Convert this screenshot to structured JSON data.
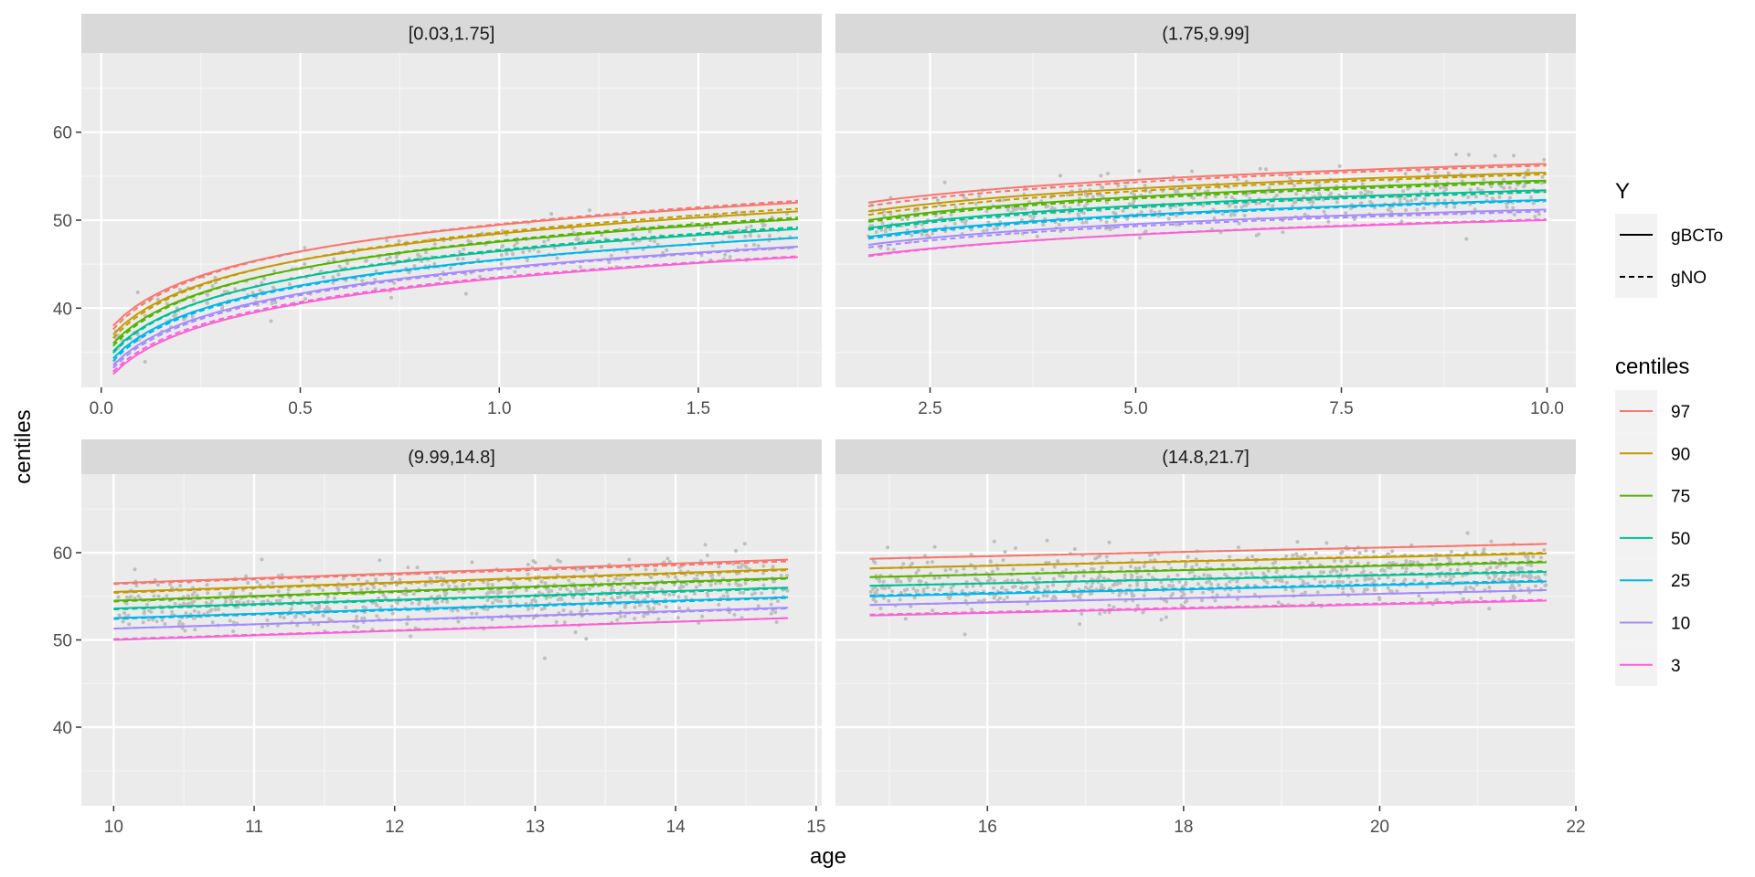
{
  "chart_data": {
    "type": "line",
    "title": "",
    "xlabel": "age",
    "ylabel": "centiles",
    "y_ticks": [
      40,
      50,
      60
    ],
    "ylim": [
      31,
      69
    ],
    "facets": [
      {
        "label": "[0.03,1.75]",
        "xlim": [
          -0.05,
          1.81
        ],
        "x_ticks": [
          0.0,
          0.5,
          1.0,
          1.5
        ],
        "x_tick_labels": [
          "0.0",
          "0.5",
          "1.0",
          "1.5"
        ],
        "x_range": [
          0.03,
          1.75
        ]
      },
      {
        "label": "(1.75,9.99]",
        "xlim": [
          1.35,
          10.35
        ],
        "x_ticks": [
          2.5,
          5.0,
          7.5,
          10.0
        ],
        "x_tick_labels": [
          "2.5",
          "5.0",
          "7.5",
          "10.0"
        ],
        "x_range": [
          1.75,
          9.99
        ]
      },
      {
        "label": "(9.99,14.8]",
        "xlim": [
          9.77,
          15.04
        ],
        "x_ticks": [
          10,
          11,
          12,
          13,
          14,
          15
        ],
        "x_tick_labels": [
          "10",
          "11",
          "12",
          "13",
          "14",
          "15"
        ],
        "x_range": [
          10.0,
          14.8
        ]
      },
      {
        "label": "(14.8,21.7]",
        "xlim": [
          14.45,
          22.0
        ],
        "x_ticks": [
          16,
          18,
          20,
          22
        ],
        "x_tick_labels": [
          "16",
          "18",
          "20",
          "22"
        ],
        "x_range": [
          14.8,
          21.7
        ]
      }
    ],
    "centiles": [
      {
        "name": "97",
        "color": "#F8766D",
        "gBCTo": [
          [
            38.0,
            52.0
          ],
          [
            52.0,
            56.4
          ],
          [
            56.5,
            59.2
          ],
          [
            59.3,
            61.0
          ]
        ],
        "gNO": [
          [
            37.6,
            52.2
          ],
          [
            51.6,
            56.2
          ],
          [
            56.4,
            59.0
          ],
          [
            59.3,
            61.0
          ]
        ]
      },
      {
        "name": "90",
        "color": "#C49A00",
        "gBCTo": [
          [
            37.0,
            51.0
          ],
          [
            51.0,
            55.4
          ],
          [
            55.5,
            58.1
          ],
          [
            58.2,
            59.9
          ]
        ],
        "gNO": [
          [
            36.6,
            51.3
          ],
          [
            50.6,
            55.2
          ],
          [
            55.4,
            58.0
          ],
          [
            58.2,
            60.0
          ]
        ]
      },
      {
        "name": "75",
        "color": "#53B400",
        "gBCTo": [
          [
            36.0,
            50.1
          ],
          [
            50.0,
            54.5
          ],
          [
            54.5,
            57.1
          ],
          [
            57.2,
            58.9
          ]
        ],
        "gNO": [
          [
            35.7,
            50.3
          ],
          [
            49.8,
            54.3
          ],
          [
            54.4,
            57.0
          ],
          [
            57.2,
            59.0
          ]
        ]
      },
      {
        "name": "50",
        "color": "#00C094",
        "gBCTo": [
          [
            35.1,
            49.0
          ],
          [
            49.1,
            53.4
          ],
          [
            53.6,
            56.0
          ],
          [
            56.2,
            57.8
          ]
        ],
        "gNO": [
          [
            34.9,
            49.2
          ],
          [
            48.9,
            53.2
          ],
          [
            53.5,
            55.9
          ],
          [
            56.2,
            57.9
          ]
        ]
      },
      {
        "name": "25",
        "color": "#00B6EB",
        "gBCTo": [
          [
            34.3,
            48.0
          ],
          [
            48.1,
            52.3
          ],
          [
            52.5,
            54.9
          ],
          [
            55.0,
            56.7
          ]
        ],
        "gNO": [
          [
            34.0,
            48.0
          ],
          [
            47.9,
            52.2
          ],
          [
            52.4,
            54.8
          ],
          [
            55.1,
            56.8
          ]
        ]
      },
      {
        "name": "10",
        "color": "#A58AFF",
        "gBCTo": [
          [
            33.5,
            47.0
          ],
          [
            47.2,
            51.2
          ],
          [
            51.3,
            53.7
          ],
          [
            54.0,
            55.7
          ]
        ],
        "gNO": [
          [
            33.2,
            46.9
          ],
          [
            46.9,
            51.0
          ],
          [
            51.3,
            53.6
          ],
          [
            54.0,
            55.7
          ]
        ]
      },
      {
        "name": "3",
        "color": "#FB61D7",
        "gBCTo": [
          [
            32.5,
            45.8
          ],
          [
            46.0,
            50.0
          ],
          [
            50.0,
            52.5
          ],
          [
            52.8,
            54.5
          ]
        ],
        "gNO": [
          [
            32.8,
            45.9
          ],
          [
            45.9,
            50.1
          ],
          [
            50.1,
            52.5
          ],
          [
            52.9,
            54.6
          ]
        ]
      }
    ],
    "scatter_note": "grey points: individual observations of the response across age",
    "legend_linetype": {
      "title": "Y",
      "entries": [
        "gBCTo",
        "gNO"
      ]
    },
    "legend_color": {
      "title": "centiles",
      "entries": [
        "97",
        "90",
        "75",
        "50",
        "25",
        "10",
        "3"
      ]
    }
  }
}
